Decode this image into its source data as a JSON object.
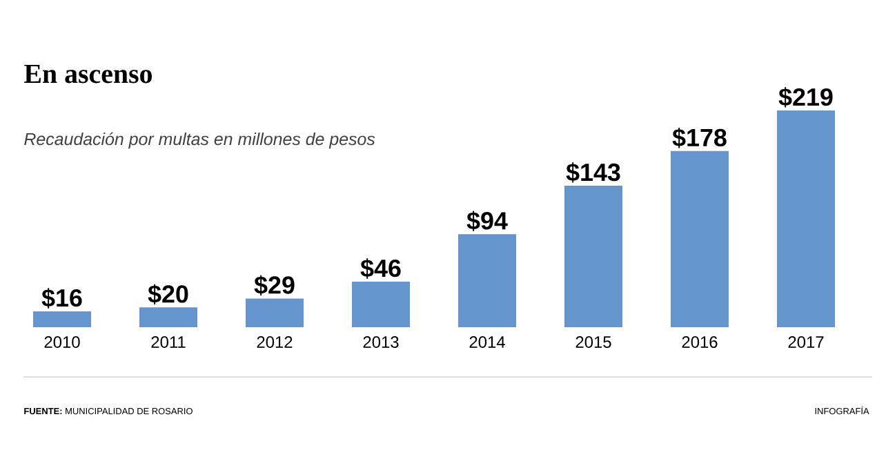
{
  "chart_data": {
    "type": "bar",
    "title": "En ascenso",
    "subtitle": "Recaudación por multas en millones de pesos",
    "categories": [
      "2010",
      "2011",
      "2012",
      "2013",
      "2014",
      "2015",
      "2016",
      "2017"
    ],
    "values": [
      16,
      20,
      29,
      46,
      94,
      143,
      178,
      219
    ],
    "value_labels": [
      "$16",
      "$20",
      "$29",
      "$46",
      "$94",
      "$143",
      "$178",
      "$219"
    ],
    "color": "#6495cd",
    "annotations": [
      "**FUENTE:** MUNICIPALIDAD DE ROSARIO",
      "INFOGRAFÍA"
    ]
  }
}
